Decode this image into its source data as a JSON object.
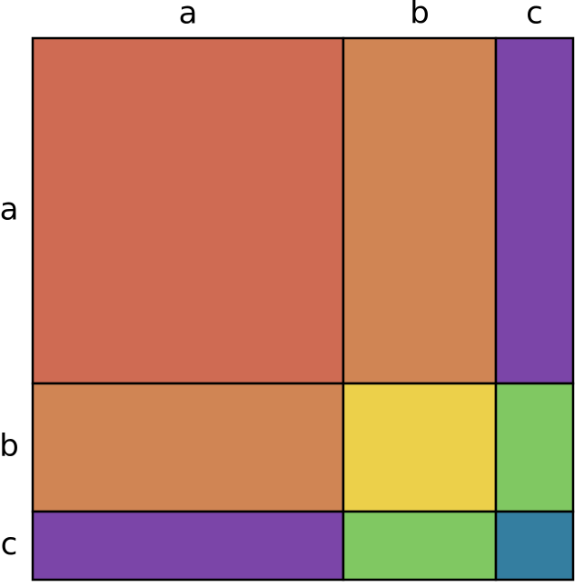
{
  "columns": [
    "a",
    "b",
    "c"
  ],
  "rows": [
    "a",
    "b",
    "c"
  ],
  "cell_colors": [
    [
      "#cf6b53",
      "#d08554",
      "#7b45a8"
    ],
    [
      "#d08554",
      "#ecd04a",
      "#80c862"
    ],
    [
      "#7b45a8",
      "#80c862",
      "#347ea0"
    ]
  ]
}
